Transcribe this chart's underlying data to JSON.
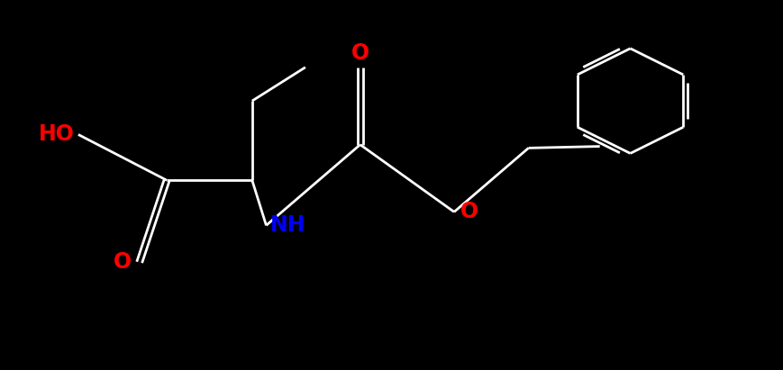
{
  "background_color": "#000000",
  "bond_color": "#ffffff",
  "oxygen_color": "#ff0000",
  "nitrogen_color": "#0000ff",
  "figsize": [
    8.69,
    4.11
  ],
  "dpi": 100,
  "xlim": [
    0,
    10
  ],
  "ylim": [
    0,
    5.5
  ],
  "font_size": 17
}
